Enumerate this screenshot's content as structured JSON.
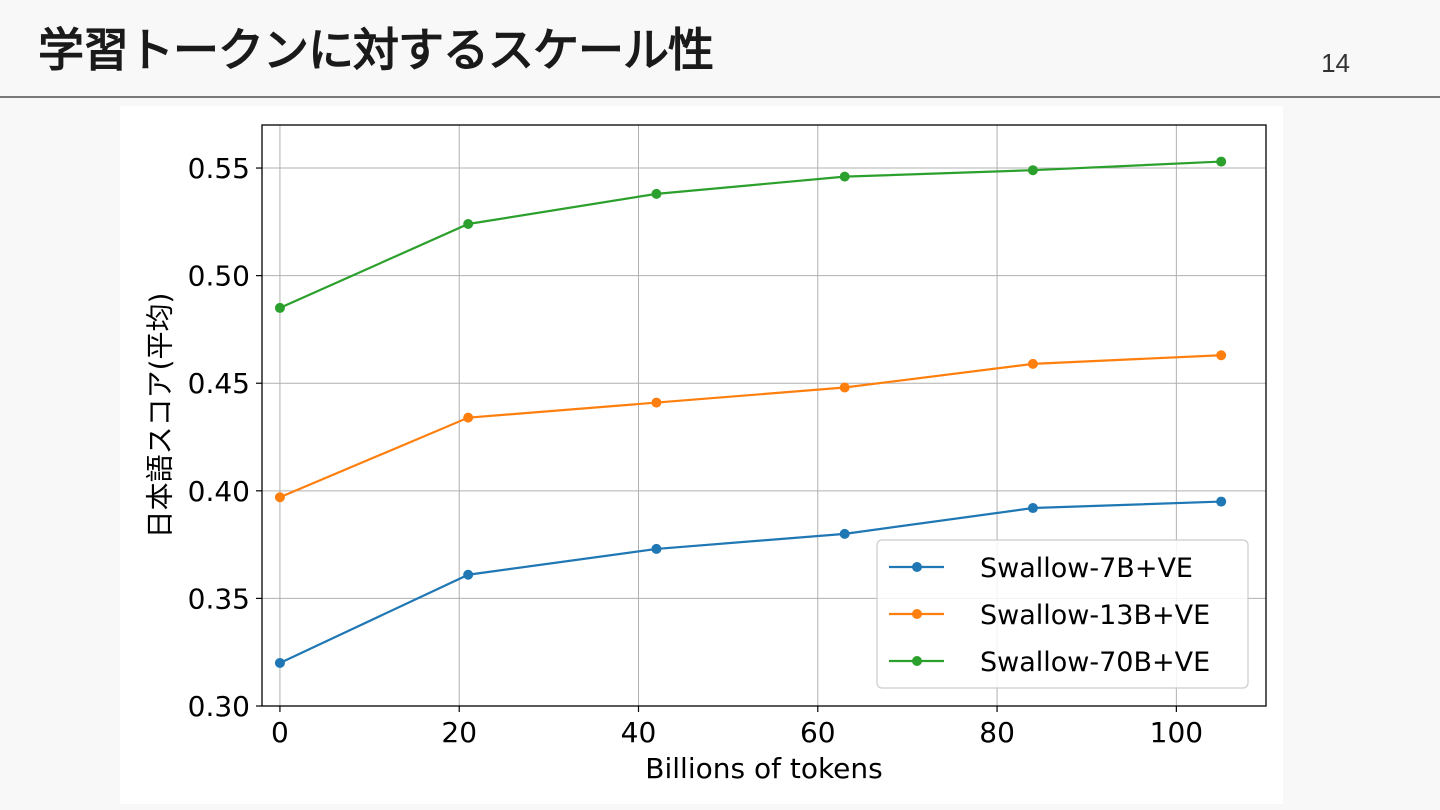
{
  "slide": {
    "title": "学習トークンに対するスケール性",
    "page_number": "14"
  },
  "chart_data": {
    "type": "line",
    "x": [
      0,
      21,
      42,
      63,
      84,
      105
    ],
    "xlabel": "Billions of tokens",
    "ylabel": "日本語スコア(平均)",
    "xlim": [
      -2,
      110
    ],
    "ylim": [
      0.3,
      0.57
    ],
    "xticks": [
      0,
      20,
      40,
      60,
      80,
      100
    ],
    "yticks": [
      0.3,
      0.35,
      0.4,
      0.45,
      0.5,
      0.55
    ],
    "xtick_labels": [
      "0",
      "20",
      "40",
      "60",
      "80",
      "100"
    ],
    "ytick_labels": [
      "0.30",
      "0.35",
      "0.40",
      "0.45",
      "0.50",
      "0.55"
    ],
    "grid": true,
    "legend_position": "bottom-right",
    "series": [
      {
        "name": "Swallow-7B+VE",
        "color": "#1f77b4",
        "values": [
          0.32,
          0.361,
          0.373,
          0.38,
          0.392,
          0.395
        ]
      },
      {
        "name": "Swallow-13B+VE",
        "color": "#ff7f0e",
        "values": [
          0.397,
          0.434,
          0.441,
          0.448,
          0.459,
          0.463
        ]
      },
      {
        "name": "Swallow-70B+VE",
        "color": "#2ca02c",
        "values": [
          0.485,
          0.524,
          0.538,
          0.546,
          0.549,
          0.553
        ]
      }
    ]
  }
}
